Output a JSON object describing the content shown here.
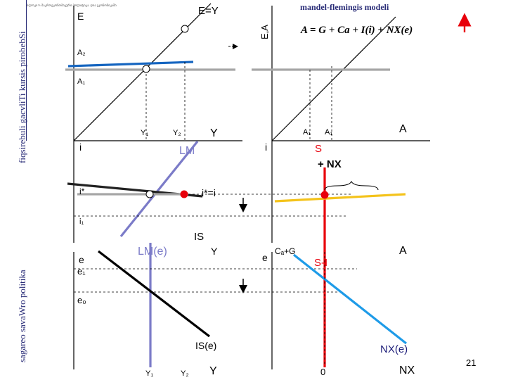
{
  "slide": {
    "header_small": "ბლოკი 9: მაკროეკონომიკური პოლიტიკა. ღია ეკონომიკაში",
    "side_title_top": "fiqsirebuli gacvliTi kursis pirobebSi",
    "side_title_bottom": "sagareo savaWro politika",
    "model_title": "mandel-flemingis modeli",
    "formula": "A = G + Ca + I(i) + NX(e)",
    "page_number": "21"
  },
  "top_left": {
    "y_axis": "E",
    "line_45": "E=Y",
    "a2": "A₂",
    "a1": "A₁",
    "y1": "Y₁",
    "y2": "Y₂",
    "x_axis": "Y"
  },
  "top_right": {
    "y_axis": "E,A",
    "a1": "A₁",
    "a1b": "A₁",
    "x_axis": "A"
  },
  "middle_left": {
    "y_axis": "i",
    "lm": "LM",
    "i_star": "i*",
    "i1": "i₁",
    "is": "IS",
    "x_axis": "Y"
  },
  "middle_right": {
    "y_axis": "i",
    "s": "S",
    "nx": "+ NX",
    "i_eq": "i*=i"
  },
  "bottom_left": {
    "y_axis": "e",
    "lm_e": "LM(e)",
    "e1": "e₁",
    "e0": "e₀",
    "is_e": "IS(e)",
    "y1": "Y₁",
    "y2": "Y₂",
    "x_axis": "Y"
  },
  "bottom_right": {
    "y_axis": "e",
    "ca_g": "Cₐ+G",
    "s_i": "S-I",
    "x_axis_top": "A",
    "nx_e": "NX(e)",
    "zero": "0",
    "x_axis": "NX"
  },
  "colors": {
    "red": "#e8000b",
    "blue_line": "#1565c0",
    "light_blue": "#1e9be8",
    "purple": "#7b7bc8",
    "gray": "#a6a6a6",
    "yellow": "#f4c31b",
    "navy_text": "#1f1f7a",
    "title_navy": "#272a76"
  }
}
